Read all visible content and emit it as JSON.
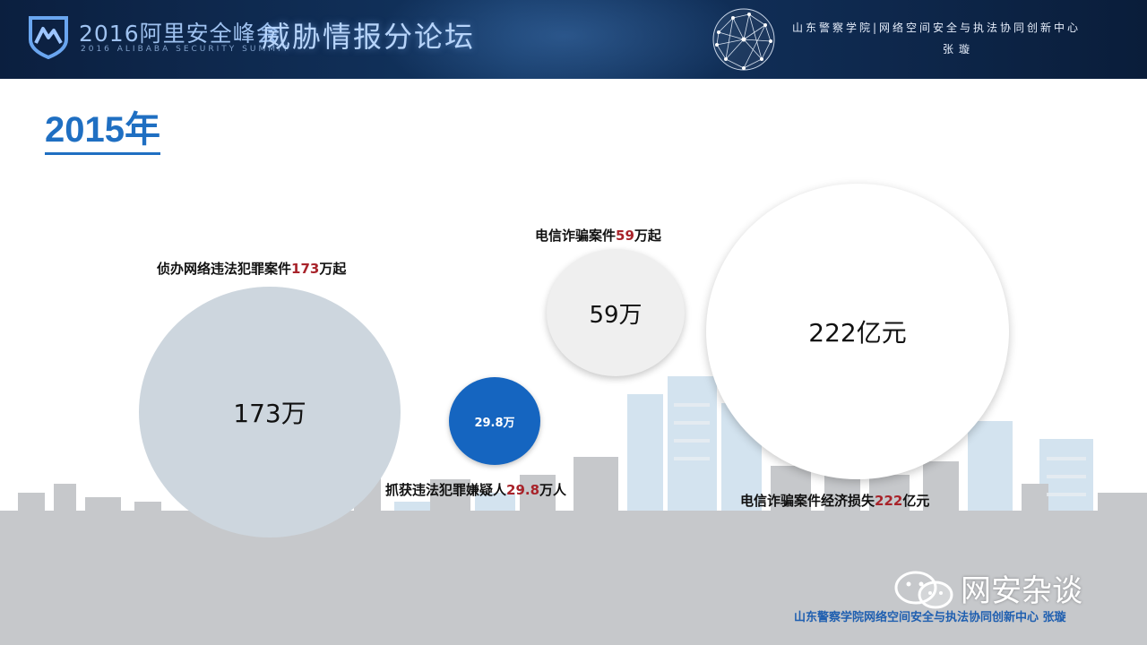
{
  "header": {
    "summit_title": "2016阿里安全峰会",
    "summit_subtitle": "2016 ALIBABA SECURITY SUMMIT",
    "forum_title": "威胁情报分论坛",
    "institute": "山东警察学院|网络空间安全与执法协同创新中心",
    "author": "张璇"
  },
  "slide": {
    "year": "2015年"
  },
  "bubbles": [
    {
      "value_label": "173万",
      "caption_pre": "侦办网络违法犯罪案件",
      "caption_num": "173",
      "caption_post": "万起"
    },
    {
      "value_label": "29.8万",
      "caption_pre": "抓获违法犯罪嫌疑人",
      "caption_num": "29.8",
      "caption_post": "万人"
    },
    {
      "value_label": "59万",
      "caption_pre": "电信诈骗案件",
      "caption_num": "59",
      "caption_post": "万起"
    },
    {
      "value_label": "222亿元",
      "caption_pre": "电信诈骗案件经济损失",
      "caption_num": "222",
      "caption_post": "亿元"
    }
  ],
  "footer": {
    "watermark": "网安杂谈",
    "institute": "山东警察学院网络空间安全与执法协同创新中心  张璇"
  },
  "colors": {
    "accent_blue": "#1f6fc2",
    "highlight_red": "#a8232a",
    "bubble_blue": "#1565c0",
    "banner_navy": "#0f2b52"
  },
  "icons": [
    "summit-shield-logo",
    "network-globe-icon",
    "wechat-icon"
  ]
}
